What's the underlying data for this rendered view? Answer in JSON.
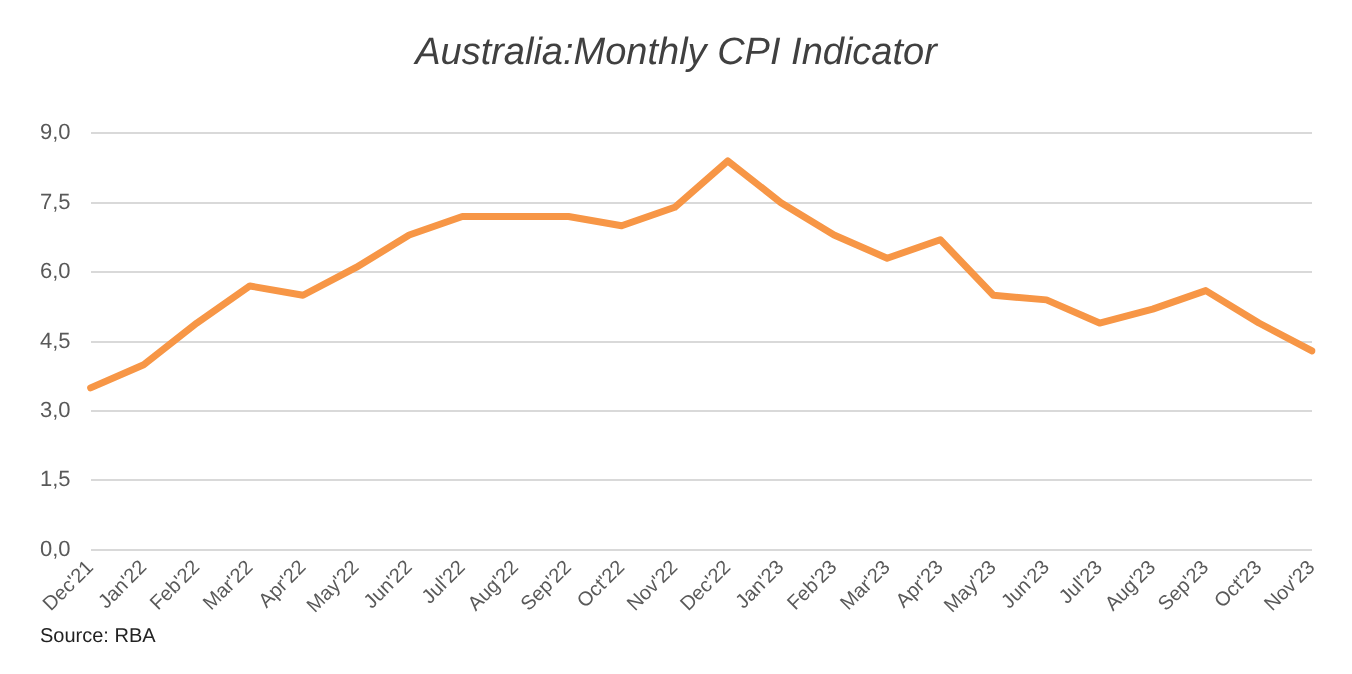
{
  "chart_data": {
    "type": "line",
    "title": "Australia:Monthly CPI Indicator",
    "categories": [
      "Dec'21",
      "Jan'22",
      "Feb'22",
      "Mar'22",
      "Apr'22",
      "May'22",
      "Jun'22",
      "Jul'22",
      "Aug'22",
      "Sep'22",
      "Oct'22",
      "Nov'22",
      "Dec'22",
      "Jan'23",
      "Feb'23",
      "Mar'23",
      "Apr'23",
      "May'23",
      "Jun'23",
      "Jul'23",
      "Aug'23",
      "Sep'23",
      "Oct'23",
      "Nov'23"
    ],
    "series": [
      {
        "color": "#f79646",
        "values": [
          3.5,
          4.0,
          4.9,
          5.7,
          5.5,
          6.1,
          6.8,
          7.2,
          7.2,
          7.2,
          7.0,
          7.4,
          8.4,
          7.5,
          6.8,
          6.3,
          6.7,
          5.5,
          5.4,
          4.9,
          5.2,
          5.6,
          4.9,
          4.3
        ]
      }
    ],
    "ylim": [
      0,
      9
    ],
    "yticks": [
      {
        "value": 0,
        "label": "0,0"
      },
      {
        "value": 1.5,
        "label": "1,5"
      },
      {
        "value": 3,
        "label": "3,0"
      },
      {
        "value": 4.5,
        "label": "4,5"
      },
      {
        "value": 6,
        "label": "6,0"
      },
      {
        "value": 7.5,
        "label": "7,5"
      },
      {
        "value": 9,
        "label": "9,0"
      }
    ],
    "grid": "y",
    "legend": false,
    "marker": "none",
    "line_style": "solid",
    "annotations": [
      "Source: RBA"
    ]
  }
}
